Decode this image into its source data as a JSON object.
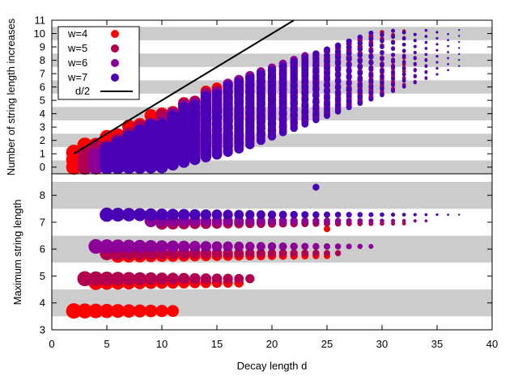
{
  "chart_data": [
    {
      "type": "scatter",
      "panel": "top",
      "title": "",
      "xlabel": "",
      "ylabel": "Number of string length increases",
      "xlim": [
        0,
        40
      ],
      "ylim": [
        -0.5,
        11
      ],
      "y_ticks": [
        0,
        1,
        2,
        3,
        4,
        5,
        6,
        7,
        8,
        9,
        10,
        11
      ],
      "shaded_bands": [
        [
          -0.5,
          0.5
        ],
        [
          1.5,
          2.5
        ],
        [
          3.5,
          4.5
        ],
        [
          5.5,
          6.5
        ],
        [
          7.5,
          8.5
        ],
        [
          9.5,
          10.5
        ]
      ],
      "legend_position": "top-left",
      "series": [
        {
          "name": "w=4",
          "color": "#ff0000",
          "trend": {
            "slope": 0.25,
            "intercept": 0.0,
            "spread": 2.2,
            "ystep": 0.55,
            "max_y": 8.2
          },
          "d_range": [
            2,
            25
          ]
        },
        {
          "name": "w=5",
          "color": "#b0004f",
          "trend": {
            "slope": 0.29,
            "intercept": -0.7,
            "spread": 2.4,
            "ystep": 0.5,
            "max_y": 10.2
          },
          "d_range": [
            3,
            32
          ]
        },
        {
          "name": "w=6",
          "color": "#8b0096",
          "trend": {
            "slope": 0.3,
            "intercept": -1.0,
            "spread": 2.5,
            "ystep": 0.45,
            "max_y": 8.4
          },
          "d_range": [
            4,
            34
          ]
        },
        {
          "name": "w=7",
          "color": "#4a00b4",
          "trend": {
            "slope": 0.31,
            "intercept": -1.3,
            "spread": 2.6,
            "ystep": 0.45,
            "max_y": 10.3
          },
          "d_range": [
            5,
            37
          ]
        }
      ],
      "line": {
        "name": "d/2",
        "color": "#000000",
        "points": [
          [
            2,
            1
          ],
          [
            22,
            11
          ]
        ]
      }
    },
    {
      "type": "scatter",
      "panel": "bottom",
      "title": "",
      "xlabel": "Decay length d",
      "ylabel": "Maximum string length",
      "xlim": [
        0,
        40
      ],
      "ylim": [
        3,
        8.8
      ],
      "x_ticks": [
        0,
        5,
        10,
        15,
        20,
        25,
        30,
        35,
        40
      ],
      "y_ticks": [
        3,
        4,
        5,
        6,
        7,
        8
      ],
      "shaded_bands": [
        [
          3.5,
          4.5
        ],
        [
          5.5,
          6.5
        ],
        [
          7.5,
          8.5
        ]
      ],
      "series": [
        {
          "name": "w=4",
          "color": "#ff0000",
          "points": [
            {
              "y": 3.7,
              "d_start": 2,
              "d_end": 11
            },
            {
              "y": 4.75,
              "d_start": 4,
              "d_end": 17
            },
            {
              "y": 5.75,
              "d_start": 6,
              "d_end": 25
            },
            {
              "y": 6.75,
              "d_start": 25,
              "d_end": 25
            }
          ]
        },
        {
          "name": "w=5",
          "color": "#b0004f",
          "points": [
            {
              "y": 4.9,
              "d_start": 3,
              "d_end": 18
            },
            {
              "y": 5.85,
              "d_start": 5,
              "d_end": 26
            },
            {
              "y": 6.95,
              "d_start": 10,
              "d_end": 32
            }
          ]
        },
        {
          "name": "w=6",
          "color": "#8b0096",
          "points": [
            {
              "y": 6.1,
              "d_start": 4,
              "d_end": 29
            },
            {
              "y": 7.05,
              "d_start": 9,
              "d_end": 34
            }
          ]
        },
        {
          "name": "w=7",
          "color": "#4a00b4",
          "points": [
            {
              "y": 7.28,
              "d_start": 5,
              "d_end": 37
            },
            {
              "y": 8.3,
              "d_start": 24,
              "d_end": 24
            }
          ]
        }
      ]
    }
  ],
  "legend": {
    "entries": [
      {
        "label": "w=4",
        "color": "#ff0000"
      },
      {
        "label": "w=5",
        "color": "#b0004f"
      },
      {
        "label": "w=6",
        "color": "#8b0096"
      },
      {
        "label": "w=7",
        "color": "#4a00b4"
      },
      {
        "label": "d/2",
        "color": "#000000"
      }
    ]
  },
  "colors": {
    "band": "#cccccc",
    "axis": "#000000",
    "background": "#ffffff"
  }
}
